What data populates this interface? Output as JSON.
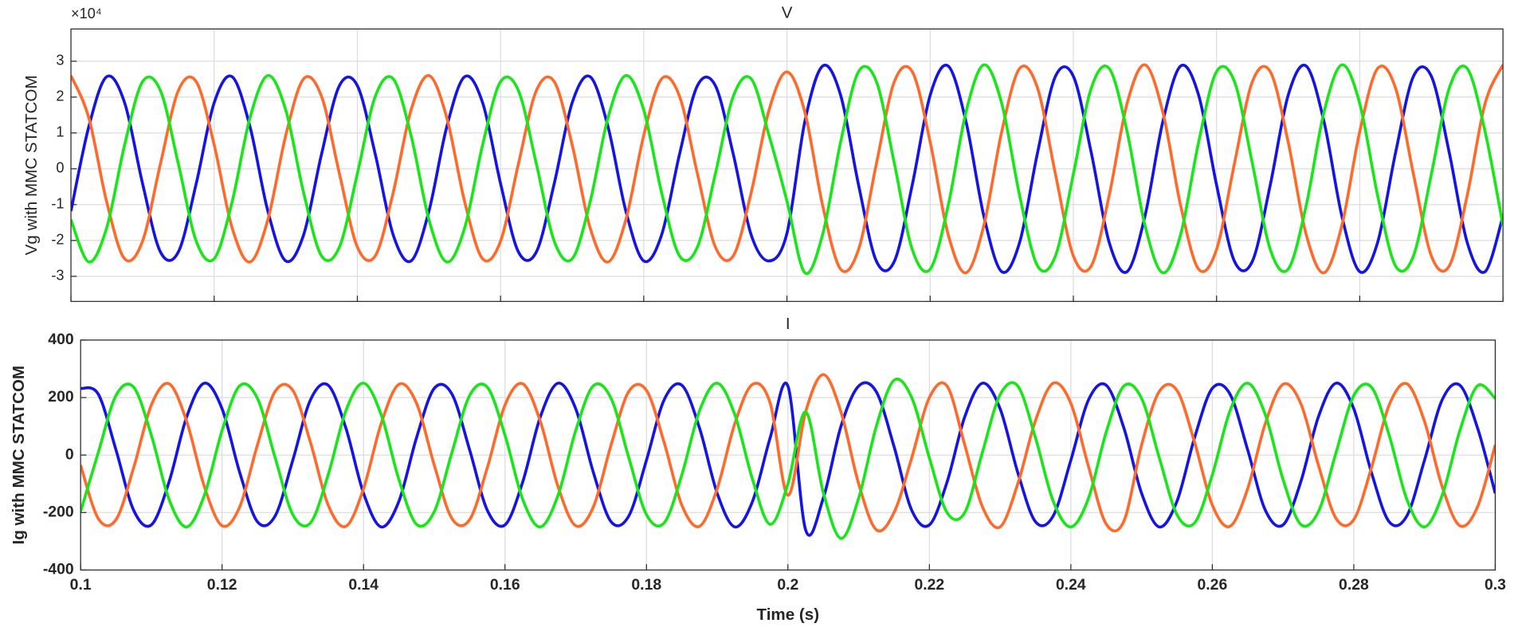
{
  "chart_data": [
    {
      "type": "line",
      "title": "V",
      "ylabel": "Vg with MMC STATCOM",
      "exponent_label": "×10⁴",
      "grid": true,
      "xlim": [
        0.1,
        0.3
      ],
      "xticks": [
        0.1,
        0.12,
        0.14,
        0.16,
        0.18,
        0.2,
        0.22,
        0.24,
        0.26,
        0.28,
        0.3
      ],
      "ylim": [
        -3.7,
        3.9
      ],
      "yticks": [
        -3,
        -2,
        -1,
        0,
        1,
        2,
        3
      ],
      "x": [
        0.1,
        0.1025,
        0.105,
        0.1075,
        0.11,
        0.1125,
        0.115,
        0.1175,
        0.12,
        0.1225,
        0.125,
        0.1275,
        0.13,
        0.1325,
        0.135,
        0.1375,
        0.14,
        0.1425,
        0.145,
        0.1475,
        0.15,
        0.1525,
        0.155,
        0.1575,
        0.16,
        0.1625,
        0.165,
        0.1675,
        0.17,
        0.1725,
        0.175,
        0.1775,
        0.18,
        0.1825,
        0.185,
        0.1875,
        0.19,
        0.1925,
        0.195,
        0.1975,
        0.2,
        0.2025,
        0.205,
        0.2075,
        0.21,
        0.2125,
        0.215,
        0.2175,
        0.22,
        0.2225,
        0.225,
        0.2275,
        0.23,
        0.2325,
        0.235,
        0.2375,
        0.24,
        0.2425,
        0.245,
        0.2475,
        0.25,
        0.2525,
        0.255,
        0.2575,
        0.26,
        0.2625,
        0.265,
        0.2675,
        0.27,
        0.2725,
        0.275,
        0.2775,
        0.28,
        0.2825,
        0.285,
        0.2875,
        0.29,
        0.2925,
        0.295,
        0.2975,
        0.3
      ],
      "series": [
        {
          "color": "#1414e6",
          "values": [
            -1.18,
            1.18,
            2.57,
            1.84,
            -0.41,
            -2.32,
            -2.32,
            -0.41,
            1.84,
            2.57,
            1.18,
            -1.18,
            -2.57,
            -1.84,
            0.41,
            2.32,
            2.32,
            0.41,
            -1.84,
            -2.57,
            -1.18,
            1.18,
            2.57,
            1.84,
            -0.41,
            -2.32,
            -2.32,
            -0.41,
            1.84,
            2.57,
            1.18,
            -1.18,
            -2.57,
            -1.84,
            0.41,
            2.32,
            2.32,
            0.41,
            -1.84,
            -2.57,
            -1.8,
            1.32,
            2.87,
            2.05,
            -0.45,
            -2.58,
            -2.58,
            -0.45,
            2.05,
            2.87,
            1.32,
            -1.32,
            -2.87,
            -2.05,
            0.45,
            2.58,
            2.58,
            0.45,
            -2.05,
            -2.87,
            -1.32,
            1.32,
            2.87,
            2.05,
            -0.45,
            -2.58,
            -2.58,
            -0.45,
            2.05,
            2.87,
            1.32,
            -1.32,
            -2.87,
            -2.05,
            0.45,
            2.58,
            2.58,
            0.45,
            -2.05,
            -2.87,
            -1.32
          ]
        },
        {
          "color": "#ff6a2a",
          "values": [
            2.6,
            1.42,
            -0.93,
            -2.51,
            -2.02,
            0.14,
            2.18,
            2.43,
            0.67,
            -1.64,
            -2.6,
            -1.42,
            0.93,
            2.51,
            2.02,
            -0.14,
            -2.18,
            -2.43,
            -0.67,
            1.64,
            2.6,
            1.42,
            -0.93,
            -2.51,
            -2.02,
            0.14,
            2.18,
            2.43,
            0.67,
            -1.64,
            -2.6,
            -1.42,
            0.93,
            2.51,
            2.02,
            -0.14,
            -2.18,
            -2.43,
            -0.67,
            1.64,
            2.7,
            1.58,
            -1.04,
            -2.8,
            -2.25,
            0.15,
            2.43,
            2.71,
            0.75,
            -1.82,
            -2.9,
            -1.58,
            1.04,
            2.8,
            2.25,
            -0.15,
            -2.43,
            -2.71,
            -0.75,
            1.82,
            2.9,
            1.58,
            -1.04,
            -2.8,
            -2.25,
            0.15,
            2.43,
            2.71,
            0.75,
            -1.82,
            -2.9,
            -1.58,
            1.04,
            2.8,
            2.25,
            -0.15,
            -2.43,
            -2.71,
            -0.75,
            1.82,
            2.9
          ]
        },
        {
          "color": "#19e619",
          "values": [
            -1.42,
            -2.6,
            -1.64,
            0.67,
            2.43,
            2.18,
            0.14,
            -2.02,
            -2.51,
            -0.93,
            1.42,
            2.6,
            1.64,
            -0.67,
            -2.43,
            -2.18,
            -0.14,
            2.02,
            2.51,
            0.93,
            -1.42,
            -2.6,
            -1.64,
            0.67,
            2.43,
            2.18,
            0.14,
            -2.02,
            -2.51,
            -0.93,
            1.42,
            2.6,
            1.64,
            -0.67,
            -2.43,
            -2.18,
            -0.14,
            2.02,
            2.51,
            0.93,
            -0.9,
            -2.9,
            -1.82,
            0.75,
            2.71,
            2.43,
            0.15,
            -2.25,
            -2.8,
            -1.04,
            1.58,
            2.9,
            1.82,
            -0.75,
            -2.71,
            -2.43,
            -0.15,
            2.25,
            2.8,
            1.04,
            -1.58,
            -2.9,
            -1.82,
            0.75,
            2.71,
            2.43,
            0.15,
            -2.25,
            -2.8,
            -1.04,
            1.58,
            2.9,
            1.82,
            -0.75,
            -2.71,
            -2.43,
            -0.15,
            2.25,
            2.8,
            1.04,
            -1.58
          ]
        }
      ]
    },
    {
      "type": "line",
      "title": "I",
      "ylabel": "Ig with MMC STATCOM",
      "xlabel": "Time (s)",
      "grid": true,
      "xlim": [
        0.1,
        0.3
      ],
      "xticks": [
        0.1,
        0.12,
        0.14,
        0.16,
        0.18,
        0.2,
        0.22,
        0.24,
        0.26,
        0.28,
        0.3
      ],
      "ylim": [
        -400,
        400
      ],
      "yticks": [
        -400,
        -200,
        0,
        200,
        400
      ],
      "x": [
        0.1,
        0.1025,
        0.105,
        0.1075,
        0.11,
        0.1125,
        0.115,
        0.1175,
        0.12,
        0.1225,
        0.125,
        0.1275,
        0.13,
        0.1325,
        0.135,
        0.1375,
        0.14,
        0.1425,
        0.145,
        0.1475,
        0.15,
        0.1525,
        0.155,
        0.1575,
        0.16,
        0.1625,
        0.165,
        0.1675,
        0.17,
        0.1725,
        0.175,
        0.1775,
        0.18,
        0.1825,
        0.185,
        0.1875,
        0.19,
        0.1925,
        0.195,
        0.1975,
        0.2,
        0.2025,
        0.205,
        0.2075,
        0.21,
        0.2125,
        0.215,
        0.2175,
        0.22,
        0.2225,
        0.225,
        0.2275,
        0.23,
        0.2325,
        0.235,
        0.2375,
        0.24,
        0.2425,
        0.245,
        0.2475,
        0.25,
        0.2525,
        0.255,
        0.2575,
        0.26,
        0.2625,
        0.265,
        0.2675,
        0.27,
        0.2725,
        0.275,
        0.2775,
        0.28,
        0.2825,
        0.285,
        0.2875,
        0.29,
        0.2925,
        0.295,
        0.2975,
        0.3
      ],
      "series": [
        {
          "color": "#1414e6",
          "values": [
            232,
            212,
            18,
            -192,
            -243,
            -94,
            133,
            250,
            161,
            -61,
            -232,
            -212,
            -18,
            192,
            243,
            94,
            -133,
            -250,
            -161,
            61,
            232,
            212,
            18,
            -192,
            -243,
            -94,
            133,
            250,
            161,
            -61,
            -232,
            -212,
            -18,
            192,
            243,
            94,
            -133,
            -250,
            -161,
            61,
            240,
            -260,
            -150,
            100,
            240,
            220,
            30,
            -192,
            -243,
            -94,
            133,
            250,
            161,
            -61,
            -232,
            -212,
            -18,
            192,
            243,
            94,
            -133,
            -250,
            -161,
            61,
            232,
            212,
            18,
            -192,
            -243,
            -94,
            133,
            250,
            161,
            -61,
            -232,
            -212,
            -18,
            192,
            243,
            94,
            -133
          ]
        },
        {
          "color": "#ff6a2a",
          "values": [
            -35,
            -221,
            -225,
            -44,
            174,
            248,
            117,
            -110,
            -246,
            -180,
            35,
            221,
            225,
            44,
            -174,
            -248,
            -117,
            110,
            246,
            180,
            -35,
            -221,
            -225,
            -44,
            174,
            248,
            117,
            -110,
            -246,
            -180,
            35,
            221,
            225,
            44,
            -174,
            -248,
            -117,
            110,
            246,
            180,
            -140,
            150,
            280,
            150,
            -100,
            -260,
            -200,
            -10,
            200,
            240,
            35,
            -180,
            -250,
            -100,
            120,
            250,
            180,
            -40,
            -240,
            -230,
            35,
            221,
            225,
            44,
            -174,
            -248,
            -117,
            110,
            246,
            180,
            -35,
            -221,
            -225,
            -44,
            174,
            248,
            117,
            -110,
            -246,
            -180,
            35
          ]
        },
        {
          "color": "#19e619",
          "values": [
            -197,
            9,
            207,
            236,
            69,
            -154,
            -250,
            -140,
            85,
            241,
            197,
            -9,
            -207,
            -236,
            -69,
            154,
            250,
            140,
            -85,
            -241,
            -197,
            9,
            207,
            236,
            69,
            -154,
            -250,
            -140,
            85,
            241,
            197,
            -9,
            -207,
            -236,
            -69,
            154,
            250,
            140,
            -85,
            -241,
            -100,
            150,
            -130,
            -290,
            -150,
            100,
            260,
            200,
            -10,
            -200,
            -200,
            10,
            210,
            240,
            60,
            -160,
            -250,
            -150,
            80,
            240,
            197,
            -9,
            -207,
            -236,
            -69,
            154,
            250,
            140,
            -85,
            -241,
            -197,
            9,
            207,
            236,
            69,
            -154,
            -250,
            -140,
            85,
            241,
            197
          ]
        }
      ]
    }
  ]
}
